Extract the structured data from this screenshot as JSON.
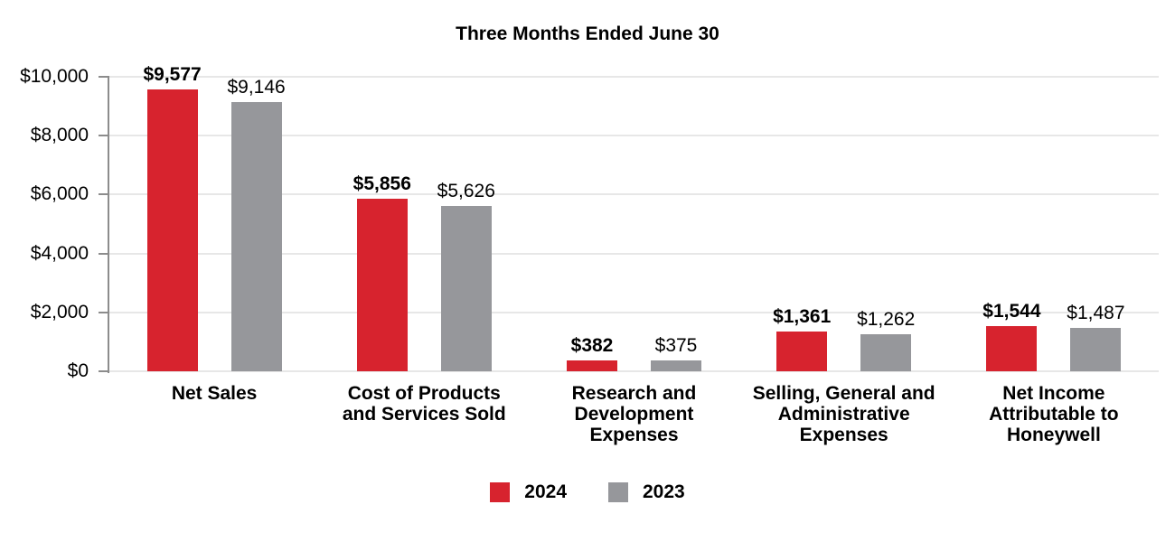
{
  "title": "Three Months Ended June 30",
  "chart_data": {
    "type": "bar",
    "title": "Three Months Ended June 30",
    "categories": [
      "Net Sales",
      "Cost of Products and Services Sold",
      "Research and Development Expenses",
      "Selling, General and Administrative Expenses",
      "Net Income Attributable to Honeywell"
    ],
    "category_lines": [
      [
        "Net Sales"
      ],
      [
        "Cost of Products",
        "and Services Sold"
      ],
      [
        "Research and",
        "Development",
        "Expenses"
      ],
      [
        "Selling, General and",
        "Administrative",
        "Expenses"
      ],
      [
        "Net Income",
        "Attributable to",
        "Honeywell"
      ]
    ],
    "series": [
      {
        "name": "2024",
        "color": "#D7232E",
        "values": [
          9577,
          5856,
          382,
          1361,
          1544
        ],
        "value_labels": [
          "$9,577",
          "$5,856",
          "$382",
          "$1,361",
          "$1,544"
        ],
        "bold_value_labels": true
      },
      {
        "name": "2023",
        "color": "#96979B",
        "values": [
          9146,
          5626,
          375,
          1262,
          1487
        ],
        "value_labels": [
          "$9,146",
          "$5,626",
          "$375",
          "$1,262",
          "$1,487"
        ],
        "bold_value_labels": false
      }
    ],
    "y_axis": {
      "min": 0,
      "max": 10000,
      "step": 2000,
      "tick_labels": [
        "$0",
        "$2,000",
        "$4,000",
        "$6,000",
        "$8,000",
        "$10,000"
      ]
    },
    "grid": true,
    "legend_position": "bottom",
    "colors": {
      "grid": "#E7E7E7",
      "axis": "#8C8C8C",
      "text": "#000000",
      "background": "#FFFFFF"
    }
  },
  "legend": {
    "items": [
      {
        "label": "2024",
        "color": "#D7232E"
      },
      {
        "label": "2023",
        "color": "#96979B"
      }
    ]
  }
}
